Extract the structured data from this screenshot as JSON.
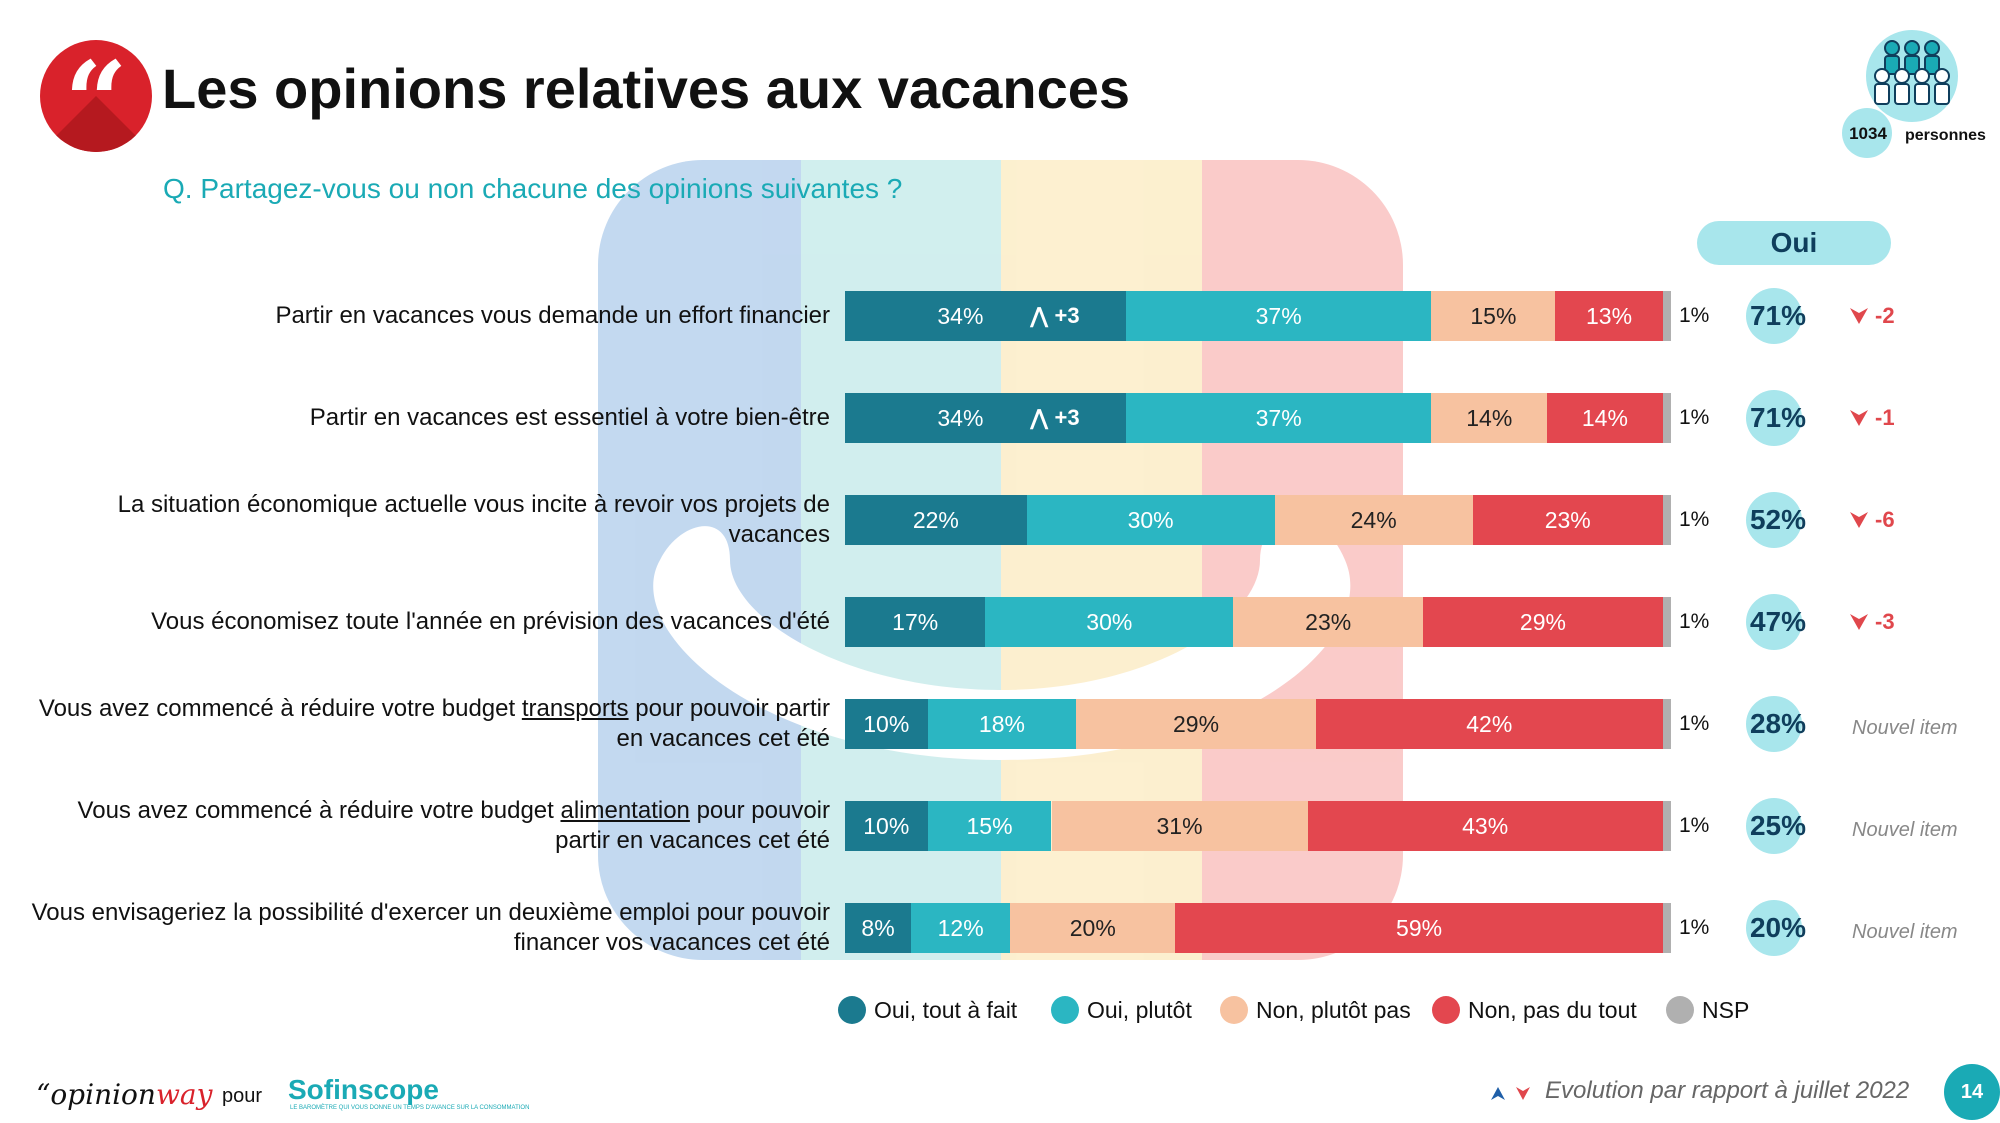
{
  "header": {
    "title": "Les opinions relatives aux vacances",
    "question": "Q. Partagez-vous ou non chacune des opinions suivantes ?",
    "logo_icon": "quote-icon"
  },
  "sample": {
    "count": "1034",
    "label": "personnes",
    "icon": "people-group-icon"
  },
  "oui_header": "Oui",
  "colors": {
    "oui_tout_a_fait": "#1b7a8f",
    "oui_plutot": "#2bb6c2",
    "non_plutot_pas": "#f7c2a0",
    "non_pas_du_tout": "#e3474f",
    "nsp": "#b0b0b0",
    "accent": "#1aaab5",
    "brand_red": "#d9222b"
  },
  "chart_data": {
    "type": "bar",
    "orientation": "horizontal",
    "stacked": true,
    "series_names": [
      "Oui, tout à fait",
      "Oui, plutôt",
      "Non, plutôt pas",
      "Non, pas du tout",
      "NSP"
    ],
    "rows": [
      {
        "label": "Partir en vacances vous demande un effort financier",
        "values": [
          34,
          37,
          15,
          13,
          1
        ],
        "labels": [
          "34%",
          "37%",
          "15%",
          "13%",
          "1%"
        ],
        "oui_total": "71%",
        "evolution": "-2",
        "evolution_direction": "down",
        "first_segment_evolution": "+3"
      },
      {
        "label": "Partir en vacances est essentiel à votre bien-être",
        "values": [
          34,
          37,
          14,
          14,
          1
        ],
        "labels": [
          "34%",
          "37%",
          "14%",
          "14%",
          "1%"
        ],
        "oui_total": "71%",
        "evolution": "-1",
        "evolution_direction": "down",
        "first_segment_evolution": "+3"
      },
      {
        "label": "La situation économique actuelle vous incite à revoir vos projets de vacances",
        "values": [
          22,
          30,
          24,
          23,
          1
        ],
        "labels": [
          "22%",
          "30%",
          "24%",
          "23%",
          "1%"
        ],
        "oui_total": "52%",
        "evolution": "-6",
        "evolution_direction": "down",
        "first_segment_evolution": ""
      },
      {
        "label": "Vous économisez toute l'année en prévision des vacances d'été",
        "values": [
          17,
          30,
          23,
          29,
          1
        ],
        "labels": [
          "17%",
          "30%",
          "23%",
          "29%",
          "1%"
        ],
        "oui_total": "47%",
        "evolution": "-3",
        "evolution_direction": "down",
        "first_segment_evolution": ""
      },
      {
        "label_before": "Vous avez commencé à réduire votre budget ",
        "label_underline": "transports",
        "label_after": " pour pouvoir partir en vacances cet été",
        "values": [
          10,
          18,
          29,
          42,
          1
        ],
        "labels": [
          "10%",
          "18%",
          "29%",
          "42%",
          "1%"
        ],
        "oui_total": "28%",
        "evolution": "Nouvel item",
        "evolution_direction": "new",
        "first_segment_evolution": ""
      },
      {
        "label_before": "Vous avez commencé à réduire votre budget ",
        "label_underline": "alimentation",
        "label_after": " pour pouvoir partir en vacances cet été",
        "values": [
          10,
          15,
          31,
          43,
          1
        ],
        "labels": [
          "10%",
          "15%",
          "31%",
          "43%",
          "1%"
        ],
        "oui_total": "25%",
        "evolution": "Nouvel item",
        "evolution_direction": "new",
        "first_segment_evolution": ""
      },
      {
        "label": "Vous envisageriez la possibilité d'exercer un deuxième emploi pour pouvoir financer vos vacances cet été",
        "values": [
          8,
          12,
          20,
          59,
          1
        ],
        "labels": [
          "8%",
          "12%",
          "20%",
          "59%",
          "1%"
        ],
        "oui_total": "20%",
        "evolution": "Nouvel item",
        "evolution_direction": "new",
        "first_segment_evolution": ""
      }
    ],
    "legend": [
      "Oui, tout à fait",
      "Oui, plutôt",
      "Non, plutôt pas",
      "Non, pas du tout",
      "NSP"
    ],
    "legend_position": "bottom"
  },
  "footer": {
    "brand_left_main": "opinion",
    "brand_left_accent": "way",
    "pour": "pour",
    "brand_right": "Sofinscope",
    "brand_right_tagline": "LE BAROMÈTRE QUI VOUS DONNE UN TEMPS D'AVANCE SUR LA CONSOMMATION",
    "evolution_note": "Evolution par rapport à juillet 2022",
    "page_number": "14"
  }
}
